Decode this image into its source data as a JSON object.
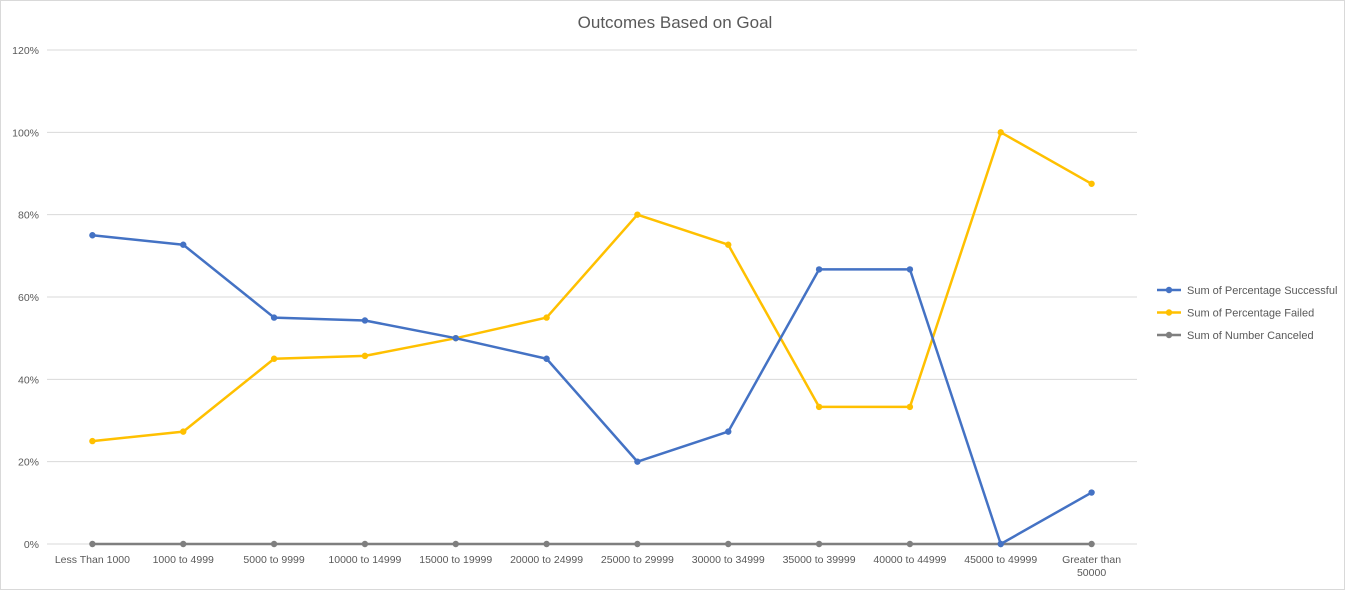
{
  "chart_data": {
    "type": "line",
    "title": "Outcomes Based on Goal",
    "xlabel": "",
    "ylabel": "",
    "categories": [
      "Less Than 1000",
      "1000 to 4999",
      "5000 to 9999",
      "10000 to 14999",
      "15000 to 19999",
      "20000 to 24999",
      "25000 to 29999",
      "30000 to 34999",
      "35000 to 39999",
      "40000 to 44999",
      "45000 to 49999",
      "Greater than 50000"
    ],
    "yticks": [
      "0%",
      "20%",
      "40%",
      "60%",
      "80%",
      "100%",
      "120%"
    ],
    "ylim": [
      0,
      1.2
    ],
    "grid": true,
    "legend_position": "right",
    "series": [
      {
        "name": "Sum of Percentage Successful",
        "color": "#4472C4",
        "values": [
          0.75,
          0.727,
          0.55,
          0.543,
          0.5,
          0.45,
          0.2,
          0.273,
          0.667,
          0.667,
          0.0,
          0.125
        ]
      },
      {
        "name": "Sum of Percentage Failed",
        "color": "#FFC000",
        "values": [
          0.25,
          0.273,
          0.45,
          0.457,
          0.5,
          0.55,
          0.8,
          0.727,
          0.333,
          0.333,
          1.0,
          0.875
        ]
      },
      {
        "name": "Sum of Number Canceled",
        "color": "#7F7F7F",
        "values": [
          0,
          0,
          0,
          0,
          0,
          0,
          0,
          0,
          0,
          0,
          0,
          0
        ]
      }
    ]
  }
}
